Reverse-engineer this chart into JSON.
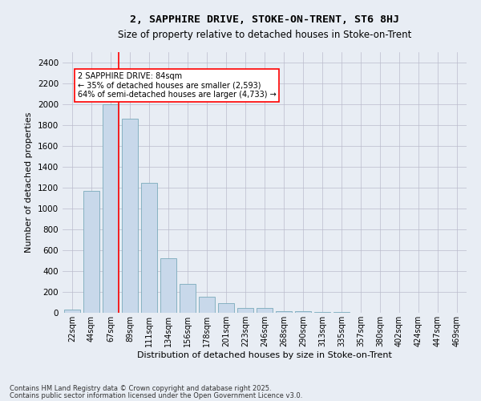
{
  "title1": "2, SAPPHIRE DRIVE, STOKE-ON-TRENT, ST6 8HJ",
  "title2": "Size of property relative to detached houses in Stoke-on-Trent",
  "xlabel": "Distribution of detached houses by size in Stoke-on-Trent",
  "ylabel": "Number of detached properties",
  "bar_labels": [
    "22sqm",
    "44sqm",
    "67sqm",
    "89sqm",
    "111sqm",
    "134sqm",
    "156sqm",
    "178sqm",
    "201sqm",
    "223sqm",
    "246sqm",
    "268sqm",
    "290sqm",
    "313sqm",
    "335sqm",
    "357sqm",
    "380sqm",
    "402sqm",
    "424sqm",
    "447sqm",
    "469sqm"
  ],
  "bar_values": [
    30,
    1170,
    2000,
    1860,
    1245,
    520,
    278,
    155,
    95,
    45,
    45,
    18,
    15,
    8,
    4,
    3,
    2,
    2,
    2,
    2,
    2
  ],
  "bar_color": "#c8d8ea",
  "bar_edge_color": "#7aaabb",
  "vline_color": "red",
  "annotation_text": "2 SAPPHIRE DRIVE: 84sqm\n← 35% of detached houses are smaller (2,593)\n64% of semi-detached houses are larger (4,733) →",
  "annotation_box_color": "white",
  "annotation_box_edge_color": "red",
  "ylim": [
    0,
    2500
  ],
  "yticks": [
    0,
    200,
    400,
    600,
    800,
    1000,
    1200,
    1400,
    1600,
    1800,
    2000,
    2200,
    2400
  ],
  "grid_color": "#bbbbcc",
  "bg_color": "#e8edf4",
  "footnote1": "Contains HM Land Registry data © Crown copyright and database right 2025.",
  "footnote2": "Contains public sector information licensed under the Open Government Licence v3.0."
}
